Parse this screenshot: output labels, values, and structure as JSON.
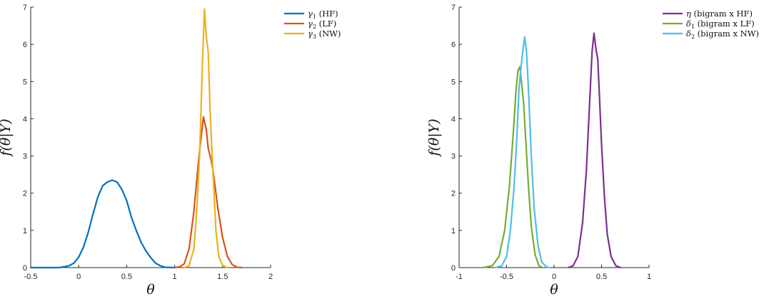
{
  "chart_data": [
    {
      "type": "line",
      "title": "",
      "xlabel": "θ",
      "ylabel": "f(θ|Y)",
      "xlim": [
        -0.5,
        2
      ],
      "ylim": [
        0,
        7
      ],
      "xticks": [
        -0.5,
        0,
        0.5,
        1,
        1.5,
        2
      ],
      "xtick_labels": [
        "-0.5",
        "0",
        "0.5",
        "1",
        "1.5",
        "2"
      ],
      "yticks": [
        0,
        1,
        2,
        3,
        4,
        5,
        6,
        7
      ],
      "ytick_labels": [
        "0",
        "1",
        "2",
        "3",
        "4",
        "5",
        "6",
        "7"
      ],
      "grid": false,
      "legend_position": "outside-top-right",
      "series": [
        {
          "name": "γ1 (HF)",
          "legend_symbol": "γ",
          "legend_sub": "1",
          "legend_rest": " (HF)",
          "color": "#0072BD",
          "points": [
            [
              -0.5,
              0
            ],
            [
              -0.2,
              0
            ],
            [
              -0.1,
              0.05
            ],
            [
              -0.05,
              0.12
            ],
            [
              0,
              0.28
            ],
            [
              0.05,
              0.55
            ],
            [
              0.1,
              0.95
            ],
            [
              0.15,
              1.45
            ],
            [
              0.2,
              1.9
            ],
            [
              0.25,
              2.2
            ],
            [
              0.3,
              2.3
            ],
            [
              0.35,
              2.35
            ],
            [
              0.4,
              2.3
            ],
            [
              0.45,
              2.1
            ],
            [
              0.5,
              1.8
            ],
            [
              0.55,
              1.35
            ],
            [
              0.6,
              1.0
            ],
            [
              0.65,
              0.68
            ],
            [
              0.7,
              0.45
            ],
            [
              0.75,
              0.27
            ],
            [
              0.8,
              0.12
            ],
            [
              0.85,
              0.05
            ],
            [
              0.9,
              0.01
            ],
            [
              1.0,
              0
            ]
          ]
        },
        {
          "name": "γ2 (LF)",
          "legend_symbol": "γ",
          "legend_sub": "2",
          "legend_rest": " (LF)",
          "color": "#D95319",
          "points": [
            [
              1.0,
              0
            ],
            [
              1.05,
              0.02
            ],
            [
              1.1,
              0.1
            ],
            [
              1.15,
              0.5
            ],
            [
              1.2,
              1.5
            ],
            [
              1.25,
              2.9
            ],
            [
              1.3,
              4.05
            ],
            [
              1.33,
              3.7
            ],
            [
              1.35,
              3.2
            ],
            [
              1.38,
              2.9
            ],
            [
              1.4,
              2.6
            ],
            [
              1.45,
              1.6
            ],
            [
              1.5,
              0.8
            ],
            [
              1.55,
              0.3
            ],
            [
              1.6,
              0.08
            ],
            [
              1.65,
              0.01
            ],
            [
              1.7,
              0
            ]
          ]
        },
        {
          "name": "γ3 (NW)",
          "legend_symbol": "γ",
          "legend_sub": "3",
          "legend_rest": " (NW)",
          "color": "#EDB120",
          "points": [
            [
              1.1,
              0
            ],
            [
              1.15,
              0.05
            ],
            [
              1.2,
              0.5
            ],
            [
              1.23,
              1.5
            ],
            [
              1.26,
              3.0
            ],
            [
              1.29,
              5.5
            ],
            [
              1.31,
              6.95
            ],
            [
              1.33,
              6.2
            ],
            [
              1.35,
              5.8
            ],
            [
              1.37,
              4.2
            ],
            [
              1.4,
              2.5
            ],
            [
              1.43,
              1.0
            ],
            [
              1.46,
              0.3
            ],
            [
              1.5,
              0.06
            ],
            [
              1.55,
              0
            ]
          ]
        }
      ]
    },
    {
      "type": "line",
      "title": "",
      "xlabel": "θ",
      "ylabel": "f(θ|Y)",
      "xlim": [
        -1,
        1
      ],
      "ylim": [
        0,
        7
      ],
      "xticks": [
        -1,
        -0.5,
        0,
        0.5,
        1
      ],
      "xtick_labels": [
        "-1",
        "-0.5",
        "0",
        "0.5",
        "1"
      ],
      "yticks": [
        0,
        1,
        2,
        3,
        4,
        5,
        6,
        7
      ],
      "ytick_labels": [
        "0",
        "1",
        "2",
        "3",
        "4",
        "5",
        "6",
        "7"
      ],
      "grid": false,
      "legend_position": "outside-top-right",
      "series": [
        {
          "name": "η (bigram x HF)",
          "legend_symbol": "η",
          "legend_sub": "",
          "legend_rest": " (bigram x HF)",
          "color": "#7E2F8E",
          "points": [
            [
              0.15,
              0
            ],
            [
              0.2,
              0.05
            ],
            [
              0.25,
              0.3
            ],
            [
              0.3,
              1.2
            ],
            [
              0.34,
              2.6
            ],
            [
              0.37,
              4.2
            ],
            [
              0.4,
              5.8
            ],
            [
              0.42,
              6.3
            ],
            [
              0.44,
              5.9
            ],
            [
              0.46,
              5.6
            ],
            [
              0.48,
              4.5
            ],
            [
              0.5,
              3.3
            ],
            [
              0.53,
              1.9
            ],
            [
              0.56,
              0.9
            ],
            [
              0.6,
              0.3
            ],
            [
              0.65,
              0.05
            ],
            [
              0.7,
              0
            ]
          ]
        },
        {
          "name": "δ1 (bigram x LF)",
          "legend_symbol": "δ",
          "legend_sub": "1",
          "legend_rest": " (bigram x LF)",
          "color": "#77AC30",
          "points": [
            [
              -0.75,
              0
            ],
            [
              -0.65,
              0.05
            ],
            [
              -0.58,
              0.3
            ],
            [
              -0.52,
              1.0
            ],
            [
              -0.47,
              2.2
            ],
            [
              -0.43,
              3.6
            ],
            [
              -0.4,
              4.8
            ],
            [
              -0.38,
              5.3
            ],
            [
              -0.36,
              5.4
            ],
            [
              -0.34,
              4.9
            ],
            [
              -0.32,
              4.4
            ],
            [
              -0.3,
              3.5
            ],
            [
              -0.27,
              2.2
            ],
            [
              -0.24,
              1.1
            ],
            [
              -0.2,
              0.35
            ],
            [
              -0.16,
              0.05
            ],
            [
              -0.12,
              0
            ]
          ]
        },
        {
          "name": "δ2 (bigram x NW)",
          "legend_symbol": "δ",
          "legend_sub": "2",
          "legend_rest": " (bigram x NW)",
          "color": "#4DBEEE",
          "points": [
            [
              -0.62,
              0
            ],
            [
              -0.55,
              0.05
            ],
            [
              -0.5,
              0.3
            ],
            [
              -0.46,
              1.0
            ],
            [
              -0.42,
              2.2
            ],
            [
              -0.39,
              3.6
            ],
            [
              -0.37,
              4.8
            ],
            [
              -0.35,
              5.35
            ],
            [
              -0.33,
              5.8
            ],
            [
              -0.31,
              6.2
            ],
            [
              -0.29,
              5.8
            ],
            [
              -0.27,
              4.8
            ],
            [
              -0.24,
              3.0
            ],
            [
              -0.21,
              1.6
            ],
            [
              -0.17,
              0.6
            ],
            [
              -0.13,
              0.15
            ],
            [
              -0.08,
              0.02
            ],
            [
              -0.05,
              0
            ]
          ]
        }
      ]
    }
  ]
}
